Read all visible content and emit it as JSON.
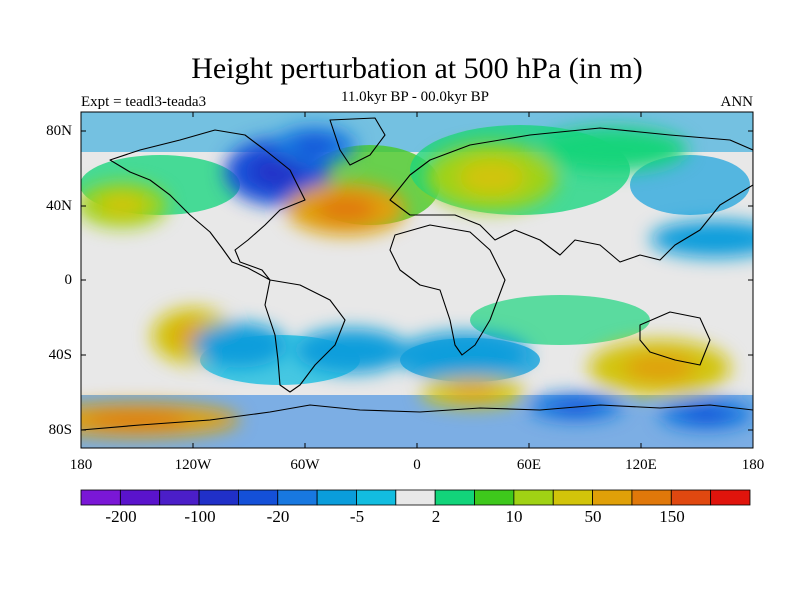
{
  "title": "Height perturbation at 500 hPa (in m)",
  "subtitle": "11.0kyr BP - 00.0kyr BP",
  "experiment": "Expt = teadl3-teada3",
  "season": "ANN",
  "lat_labels": [
    "80N",
    "40N",
    "0",
    "40S",
    "80S"
  ],
  "lon_labels": [
    "180",
    "120W",
    "60W",
    "0",
    "60E",
    "120E",
    "180"
  ],
  "colorbar": {
    "colors": [
      "#7a17d6",
      "#5a13cc",
      "#4b1ec8",
      "#2030c8",
      "#1450d8",
      "#1878e0",
      "#0a9ddb",
      "#12bde0",
      "#e8e8e8",
      "#12d47a",
      "#3ec81c",
      "#a0d214",
      "#d2c40a",
      "#e0a008",
      "#e0780a",
      "#e04810",
      "#e0140c"
    ],
    "labels": [
      "-200",
      "-100",
      "-20",
      "-5",
      "2",
      "10",
      "50",
      "150"
    ]
  },
  "anomalies": [
    {
      "lon": -75,
      "lat": 58,
      "rx": 28,
      "ry": 18,
      "level": 4
    },
    {
      "lon": -55,
      "lat": 72,
      "rx": 22,
      "ry": 10,
      "level": 5
    },
    {
      "lon": -38,
      "lat": 38,
      "rx": 32,
      "ry": 14,
      "level": 13
    },
    {
      "lon": 40,
      "lat": 55,
      "rx": 35,
      "ry": 18,
      "level": 11
    },
    {
      "lon": 105,
      "lat": 70,
      "rx": 40,
      "ry": 12,
      "level": 9
    },
    {
      "lon": -158,
      "lat": 40,
      "rx": 24,
      "ry": 12,
      "level": 11
    },
    {
      "lon": -120,
      "lat": -30,
      "rx": 22,
      "ry": 15,
      "level": 12
    },
    {
      "lon": 130,
      "lat": -47,
      "rx": 38,
      "ry": 15,
      "level": 12
    },
    {
      "lon": -150,
      "lat": -75,
      "rx": 55,
      "ry": 9,
      "level": 13
    },
    {
      "lon": 30,
      "lat": -60,
      "rx": 28,
      "ry": 8,
      "level": 12
    },
    {
      "lon": -35,
      "lat": -38,
      "rx": 30,
      "ry": 12,
      "level": 6
    },
    {
      "lon": 25,
      "lat": -40,
      "rx": 35,
      "ry": 12,
      "level": 6
    },
    {
      "lon": 85,
      "lat": -68,
      "rx": 25,
      "ry": 7,
      "level": 5
    },
    {
      "lon": 155,
      "lat": -72,
      "rx": 25,
      "ry": 8,
      "level": 5
    },
    {
      "lon": 160,
      "lat": 22,
      "rx": 35,
      "ry": 10,
      "level": 6
    },
    {
      "lon": -95,
      "lat": -35,
      "rx": 25,
      "ry": 12,
      "level": 6
    }
  ]
}
